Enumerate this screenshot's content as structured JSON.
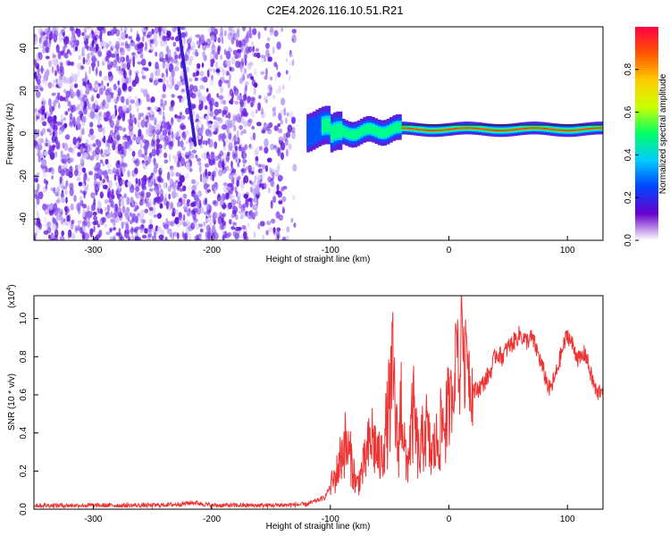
{
  "colors": {
    "line": "#ee3333",
    "dots": "#6a1fe0",
    "background": "#ffffff",
    "axis": "#000000"
  },
  "chart_data": [
    {
      "type": "heatmap",
      "title": "C2E4.2026.116.10.51.R21",
      "xlabel": "Height of straight line (km)",
      "ylabel": "Frequency (Hz)",
      "xlim": [
        -350,
        130
      ],
      "ylim": [
        -50,
        50
      ],
      "xticks": [
        "-300",
        "-200",
        "-100",
        "0",
        "100"
      ],
      "xtick_values": [
        -300,
        -200,
        -100,
        0,
        100
      ],
      "yticks": [
        "-40",
        "-20",
        "0",
        "20",
        "40"
      ],
      "ytick_values": [
        -40,
        -20,
        0,
        20,
        40
      ],
      "colorbar": {
        "label": "Normalized spectral amplitude",
        "range": [
          0,
          1
        ],
        "ticks": [
          "0.0",
          "0.2",
          "0.4",
          "0.6",
          "0.8"
        ],
        "tick_values": [
          0.0,
          0.2,
          0.4,
          0.6,
          0.8
        ],
        "stops": [
          "#ffffff",
          "#6600cc",
          "#0044ff",
          "#00ccff",
          "#00ff66",
          "#ccff00",
          "#ffcc00",
          "#ff5500",
          "#ff0044"
        ]
      },
      "ridge": {
        "description": "bright ridge near 0-3 Hz",
        "x_start": -120,
        "x_end": 130
      }
    },
    {
      "type": "line",
      "xlabel": "Height of straight line (km)",
      "ylabel": "SNR (10 * v/v)",
      "y_multiplier": "(x10",
      "y_multiplier_exp": "4",
      "y_multiplier_close": ")",
      "xlim": [
        -350,
        130
      ],
      "ylim": [
        0,
        1.12
      ],
      "xticks": [
        "-300",
        "-200",
        "-100",
        "0",
        "100"
      ],
      "xtick_values": [
        -300,
        -200,
        -100,
        0,
        100
      ],
      "yticks": [
        "0.0",
        "0.2",
        "0.4",
        "0.6",
        "0.8",
        "1.0"
      ],
      "ytick_values": [
        0.0,
        0.2,
        0.4,
        0.6,
        0.8,
        1.0
      ],
      "series": [
        {
          "name": "SNR",
          "x": [
            -350,
            -300,
            -250,
            -230,
            -215,
            -200,
            -180,
            -150,
            -120,
            -105,
            -95,
            -88,
            -82,
            -78,
            -72,
            -65,
            -58,
            -52,
            -47,
            -43,
            -40,
            -36,
            -30,
            -25,
            -20,
            -15,
            -10,
            -5,
            0,
            3,
            5,
            7,
            9,
            11,
            13,
            15,
            18,
            22,
            28,
            35,
            40,
            45,
            50,
            55,
            60,
            65,
            70,
            75,
            80,
            85,
            90,
            95,
            100,
            105,
            110,
            115,
            120,
            125,
            130
          ],
          "y": [
            0.02,
            0.02,
            0.02,
            0.025,
            0.035,
            0.02,
            0.02,
            0.02,
            0.025,
            0.06,
            0.18,
            0.35,
            0.25,
            0.12,
            0.22,
            0.38,
            0.25,
            0.45,
            0.7,
            0.28,
            0.6,
            0.2,
            0.5,
            0.25,
            0.45,
            0.28,
            0.35,
            0.45,
            0.5,
            0.62,
            0.72,
            0.98,
            0.6,
            1.12,
            0.68,
            0.92,
            0.65,
            0.62,
            0.65,
            0.72,
            0.82,
            0.8,
            0.85,
            0.88,
            0.92,
            0.88,
            0.9,
            0.82,
            0.72,
            0.62,
            0.7,
            0.82,
            0.92,
            0.85,
            0.78,
            0.82,
            0.7,
            0.6,
            0.65
          ]
        }
      ]
    }
  ]
}
